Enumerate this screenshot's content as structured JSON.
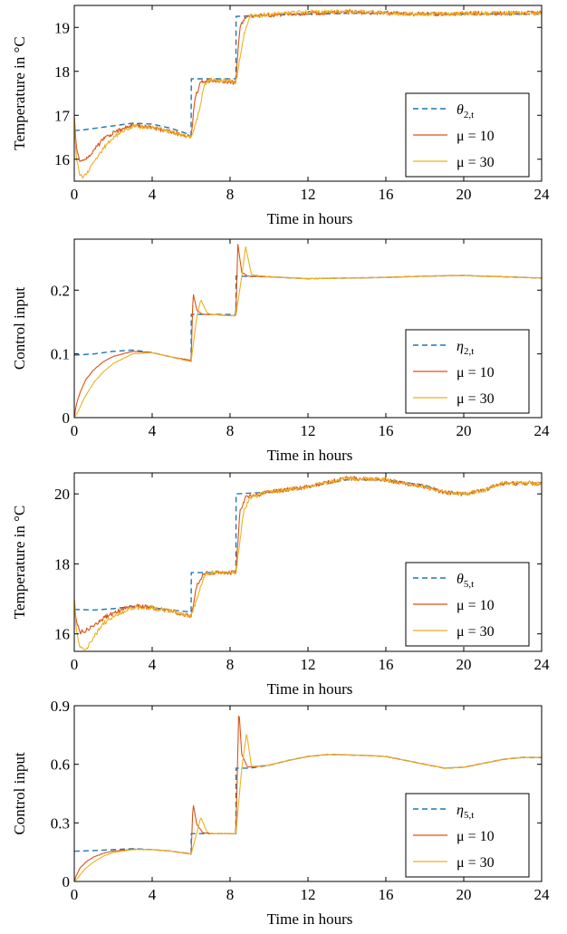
{
  "chart_data": [
    {
      "type": "line",
      "xlabel": "Time in hours",
      "ylabel": "Temperature in °C",
      "xlim": [
        0,
        24
      ],
      "ylim": [
        15.5,
        19.5
      ],
      "xticks": [
        "0",
        "4",
        "8",
        "12",
        "16",
        "20",
        "24"
      ],
      "yticks": [
        "16",
        "17",
        "18",
        "19"
      ],
      "grid": false,
      "legend_position": "bottom-right",
      "series": [
        {
          "name": "θ2,t",
          "name_main": "θ",
          "name_sub": "2,t",
          "style": "dashed",
          "color": "#1f77b4",
          "x": [
            0,
            0.5,
            1,
            2,
            3,
            4,
            5,
            6,
            6.01,
            8.3,
            8.31,
            10,
            12,
            14,
            16,
            18,
            20,
            22,
            24
          ],
          "y": [
            16.65,
            16.67,
            16.7,
            16.76,
            16.82,
            16.8,
            16.7,
            16.55,
            17.83,
            17.83,
            19.25,
            19.28,
            19.3,
            19.32,
            19.32,
            19.3,
            19.3,
            19.3,
            19.3
          ]
        },
        {
          "name": "μ = 10",
          "name_main": "μ = 10",
          "name_sub": "",
          "style": "solid",
          "color": "#d95319",
          "x": [
            0,
            0.1,
            0.3,
            0.5,
            1,
            1.5,
            2,
            3,
            4,
            5,
            6,
            6.2,
            6.5,
            7,
            8,
            8.3,
            8.5,
            8.8,
            10,
            12,
            14,
            16,
            18,
            20,
            22,
            24
          ],
          "y": [
            16.95,
            16.3,
            15.95,
            15.98,
            16.2,
            16.45,
            16.6,
            16.78,
            16.72,
            16.62,
            16.5,
            17.4,
            17.75,
            17.8,
            17.75,
            17.75,
            19.0,
            19.25,
            19.28,
            19.32,
            19.35,
            19.33,
            19.3,
            19.32,
            19.32,
            19.33
          ]
        },
        {
          "name": "μ = 30",
          "name_main": "μ = 30",
          "name_sub": "",
          "style": "solid",
          "color": "#edb120",
          "x": [
            0,
            0.1,
            0.3,
            0.5,
            1,
            1.5,
            2,
            3,
            4,
            5,
            6,
            6.3,
            6.7,
            7,
            8,
            8.3,
            8.7,
            9,
            10,
            12,
            14,
            16,
            18,
            20,
            22,
            24
          ],
          "y": [
            16.95,
            16.0,
            15.65,
            15.6,
            15.9,
            16.25,
            16.5,
            16.75,
            16.72,
            16.62,
            16.5,
            16.9,
            17.7,
            17.8,
            17.78,
            17.75,
            18.8,
            19.25,
            19.3,
            19.35,
            19.37,
            19.33,
            19.3,
            19.32,
            19.32,
            19.33
          ]
        }
      ]
    },
    {
      "type": "line",
      "xlabel": "Time in hours",
      "ylabel": "Control input",
      "xlim": [
        0,
        24
      ],
      "ylim": [
        0,
        0.28
      ],
      "xticks": [
        "0",
        "4",
        "8",
        "12",
        "16",
        "20",
        "24"
      ],
      "yticks": [
        "0",
        "0.1",
        "0.2"
      ],
      "grid": false,
      "legend_position": "bottom-right",
      "series": [
        {
          "name": "η2,t",
          "name_main": "η",
          "name_sub": "2,t",
          "style": "dashed",
          "color": "#1f77b4",
          "x": [
            0,
            1,
            2,
            3,
            4,
            5,
            6,
            6.01,
            8.3,
            8.31,
            10,
            12,
            14,
            16,
            18,
            20,
            22,
            24
          ],
          "y": [
            0.098,
            0.1,
            0.104,
            0.106,
            0.102,
            0.095,
            0.088,
            0.162,
            0.162,
            0.222,
            0.221,
            0.218,
            0.219,
            0.22,
            0.222,
            0.223,
            0.221,
            0.219
          ]
        },
        {
          "name": "μ = 10",
          "name_main": "μ = 10",
          "name_sub": "",
          "style": "solid",
          "color": "#d95319",
          "x": [
            0,
            0.1,
            0.3,
            0.6,
            1,
            1.5,
            2,
            3,
            4,
            5,
            6,
            6.1,
            6.3,
            6.6,
            7,
            8,
            8.3,
            8.4,
            8.6,
            8.9,
            10,
            12,
            14,
            16,
            18,
            20,
            22,
            24
          ],
          "y": [
            0,
            0.02,
            0.04,
            0.06,
            0.075,
            0.088,
            0.096,
            0.104,
            0.102,
            0.095,
            0.09,
            0.196,
            0.168,
            0.162,
            0.162,
            0.16,
            0.16,
            0.272,
            0.228,
            0.222,
            0.221,
            0.218,
            0.219,
            0.22,
            0.222,
            0.223,
            0.221,
            0.219
          ]
        },
        {
          "name": "μ = 30",
          "name_main": "μ = 30",
          "name_sub": "",
          "style": "solid",
          "color": "#edb120",
          "x": [
            0,
            0.2,
            0.5,
            1,
            1.5,
            2,
            3,
            4,
            5,
            6,
            6.3,
            6.5,
            6.8,
            7,
            8,
            8.3,
            8.6,
            8.8,
            9.1,
            10,
            12,
            14,
            16,
            18,
            20,
            22,
            24
          ],
          "y": [
            0,
            0.01,
            0.03,
            0.055,
            0.072,
            0.085,
            0.1,
            0.102,
            0.095,
            0.088,
            0.16,
            0.185,
            0.165,
            0.162,
            0.16,
            0.16,
            0.222,
            0.268,
            0.224,
            0.221,
            0.218,
            0.219,
            0.22,
            0.222,
            0.223,
            0.221,
            0.219
          ]
        }
      ]
    },
    {
      "type": "line",
      "xlabel": "Time in hours",
      "ylabel": "Temperature in °C",
      "xlim": [
        0,
        24
      ],
      "ylim": [
        15.5,
        20.6
      ],
      "xticks": [
        "0",
        "4",
        "8",
        "12",
        "16",
        "20",
        "24"
      ],
      "yticks": [
        "16",
        "18",
        "20"
      ],
      "grid": false,
      "legend_position": "bottom-right",
      "series": [
        {
          "name": "θ5,t",
          "name_main": "θ",
          "name_sub": "5,t",
          "style": "dashed",
          "color": "#1f77b4",
          "x": [
            0,
            1,
            2,
            3,
            4,
            5,
            6,
            6.01,
            8.3,
            8.31,
            10,
            12,
            14,
            16,
            18,
            19,
            20,
            21,
            22,
            24
          ],
          "y": [
            16.7,
            16.68,
            16.72,
            16.78,
            16.75,
            16.68,
            16.62,
            17.75,
            17.75,
            20.0,
            20.05,
            20.2,
            20.4,
            20.4,
            20.25,
            20.05,
            20.0,
            20.1,
            20.3,
            20.3
          ]
        },
        {
          "name": "μ = 10",
          "name_main": "μ = 10",
          "name_sub": "",
          "style": "solid",
          "color": "#d95319",
          "x": [
            0,
            0.1,
            0.3,
            0.6,
            1,
            1.5,
            2,
            3,
            4,
            5,
            6,
            6.3,
            6.6,
            7,
            8,
            8.3,
            8.5,
            8.8,
            10,
            12,
            14,
            16,
            18,
            19,
            20,
            21,
            22,
            24
          ],
          "y": [
            17.0,
            16.4,
            16.05,
            16.1,
            16.25,
            16.45,
            16.6,
            16.8,
            16.75,
            16.65,
            16.5,
            17.4,
            17.7,
            17.75,
            17.75,
            17.75,
            19.5,
            19.9,
            20.05,
            20.2,
            20.45,
            20.4,
            20.2,
            20.05,
            20.0,
            20.1,
            20.3,
            20.3
          ]
        },
        {
          "name": "μ = 30",
          "name_main": "μ = 30",
          "name_sub": "",
          "style": "solid",
          "color": "#edb120",
          "x": [
            0,
            0.1,
            0.3,
            0.6,
            1,
            1.5,
            2,
            3,
            4,
            5,
            6,
            6.3,
            6.7,
            7,
            8,
            8.3,
            8.7,
            9,
            10,
            12,
            14,
            16,
            18,
            19,
            20,
            21,
            22,
            24
          ],
          "y": [
            17.0,
            16.1,
            15.6,
            15.55,
            15.9,
            16.3,
            16.5,
            16.75,
            16.75,
            16.65,
            16.5,
            17.0,
            17.7,
            17.75,
            17.75,
            17.75,
            19.5,
            19.9,
            20.05,
            20.2,
            20.45,
            20.4,
            20.2,
            20.05,
            20.0,
            20.1,
            20.3,
            20.3
          ]
        }
      ]
    },
    {
      "type": "line",
      "xlabel": "Time in hours",
      "ylabel": "Control input",
      "xlim": [
        0,
        24
      ],
      "ylim": [
        0,
        0.9
      ],
      "xticks": [
        "0",
        "4",
        "8",
        "12",
        "16",
        "20",
        "24"
      ],
      "yticks": [
        "0",
        "0.3",
        "0.6",
        "0.9"
      ],
      "grid": false,
      "legend_position": "bottom-right",
      "series": [
        {
          "name": "η5,t",
          "name_main": "η",
          "name_sub": "5,t",
          "style": "dashed",
          "color": "#1f77b4",
          "x": [
            0,
            1,
            2,
            3,
            4,
            5,
            6,
            6.01,
            8.3,
            8.31,
            9,
            10,
            11,
            12,
            13,
            14,
            15,
            16,
            17,
            18,
            19,
            20,
            21,
            22,
            23,
            24
          ],
          "y": [
            0.155,
            0.158,
            0.163,
            0.168,
            0.163,
            0.155,
            0.142,
            0.245,
            0.245,
            0.58,
            0.58,
            0.595,
            0.62,
            0.64,
            0.65,
            0.648,
            0.645,
            0.64,
            0.62,
            0.6,
            0.58,
            0.585,
            0.605,
            0.625,
            0.635,
            0.635
          ]
        },
        {
          "name": "μ = 10",
          "name_main": "μ = 10",
          "name_sub": "",
          "style": "solid",
          "color": "#d95319",
          "x": [
            0,
            0.1,
            0.3,
            0.6,
            1,
            1.5,
            2,
            3,
            4,
            5,
            6,
            6.1,
            6.3,
            6.6,
            7,
            8,
            8.3,
            8.45,
            8.6,
            8.9,
            10,
            11,
            12,
            13,
            14,
            15,
            16,
            17,
            18,
            19,
            20,
            21,
            22,
            23,
            24
          ],
          "y": [
            0,
            0.03,
            0.07,
            0.1,
            0.125,
            0.145,
            0.155,
            0.165,
            0.163,
            0.155,
            0.14,
            0.4,
            0.29,
            0.25,
            0.245,
            0.245,
            0.245,
            0.89,
            0.65,
            0.585,
            0.595,
            0.62,
            0.64,
            0.65,
            0.648,
            0.645,
            0.64,
            0.62,
            0.6,
            0.58,
            0.585,
            0.605,
            0.625,
            0.635,
            0.635
          ]
        },
        {
          "name": "μ = 30",
          "name_main": "μ = 30",
          "name_sub": "",
          "style": "solid",
          "color": "#edb120",
          "x": [
            0,
            0.2,
            0.5,
            1,
            1.5,
            2,
            3,
            4,
            5,
            6,
            6.3,
            6.5,
            6.8,
            7,
            8,
            8.3,
            8.6,
            8.85,
            9.1,
            10,
            11,
            12,
            13,
            14,
            15,
            16,
            17,
            18,
            19,
            20,
            21,
            22,
            23,
            24
          ],
          "y": [
            0,
            0.02,
            0.06,
            0.1,
            0.13,
            0.148,
            0.163,
            0.163,
            0.155,
            0.14,
            0.25,
            0.33,
            0.255,
            0.245,
            0.245,
            0.245,
            0.58,
            0.76,
            0.59,
            0.595,
            0.62,
            0.64,
            0.65,
            0.648,
            0.645,
            0.64,
            0.62,
            0.6,
            0.58,
            0.585,
            0.605,
            0.625,
            0.635,
            0.635
          ]
        }
      ]
    }
  ]
}
